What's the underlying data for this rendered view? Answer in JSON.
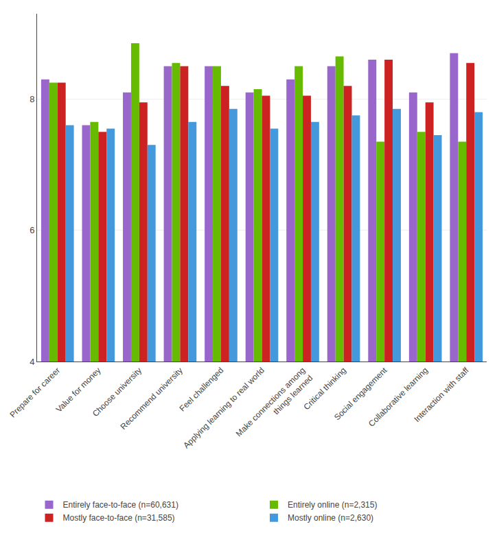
{
  "chart_data": {
    "type": "bar",
    "categories": [
      "Prepare for career",
      "Value for money",
      "Choose university",
      "Recommend university",
      "Feel challenged",
      "Applying learning to real world",
      "Make connections among\nthings learned",
      "Critical thinking",
      "Social engagement",
      "Collaborative learning",
      "Interaction with staff"
    ],
    "series": [
      {
        "name": "Entirely face-to-face (n=60,631)",
        "color": "#9966CC",
        "values": [
          8.3,
          7.6,
          8.1,
          8.5,
          8.5,
          8.1,
          8.3,
          8.5,
          8.6,
          8.1,
          8.7
        ]
      },
      {
        "name": "Entirely online (n=2,315)",
        "color": "#66BB00",
        "values": [
          8.25,
          7.65,
          8.85,
          8.55,
          8.5,
          8.15,
          8.5,
          8.65,
          7.35,
          7.5,
          7.35
        ]
      },
      {
        "name": "Mostly face-to-face (n=31,585)",
        "color": "#CC2222",
        "values": [
          8.25,
          7.5,
          7.95,
          8.5,
          8.2,
          8.05,
          8.05,
          8.2,
          8.6,
          7.95,
          8.55
        ]
      },
      {
        "name": "Mostly online (n=2,630)",
        "color": "#4499DD",
        "values": [
          7.6,
          7.55,
          7.3,
          7.65,
          7.85,
          7.55,
          7.65,
          7.75,
          7.85,
          7.45,
          7.8
        ]
      }
    ],
    "ylim": [
      4,
      9.3
    ],
    "yticks": [
      4,
      6,
      8
    ],
    "grid": true,
    "legend": "bottom"
  }
}
